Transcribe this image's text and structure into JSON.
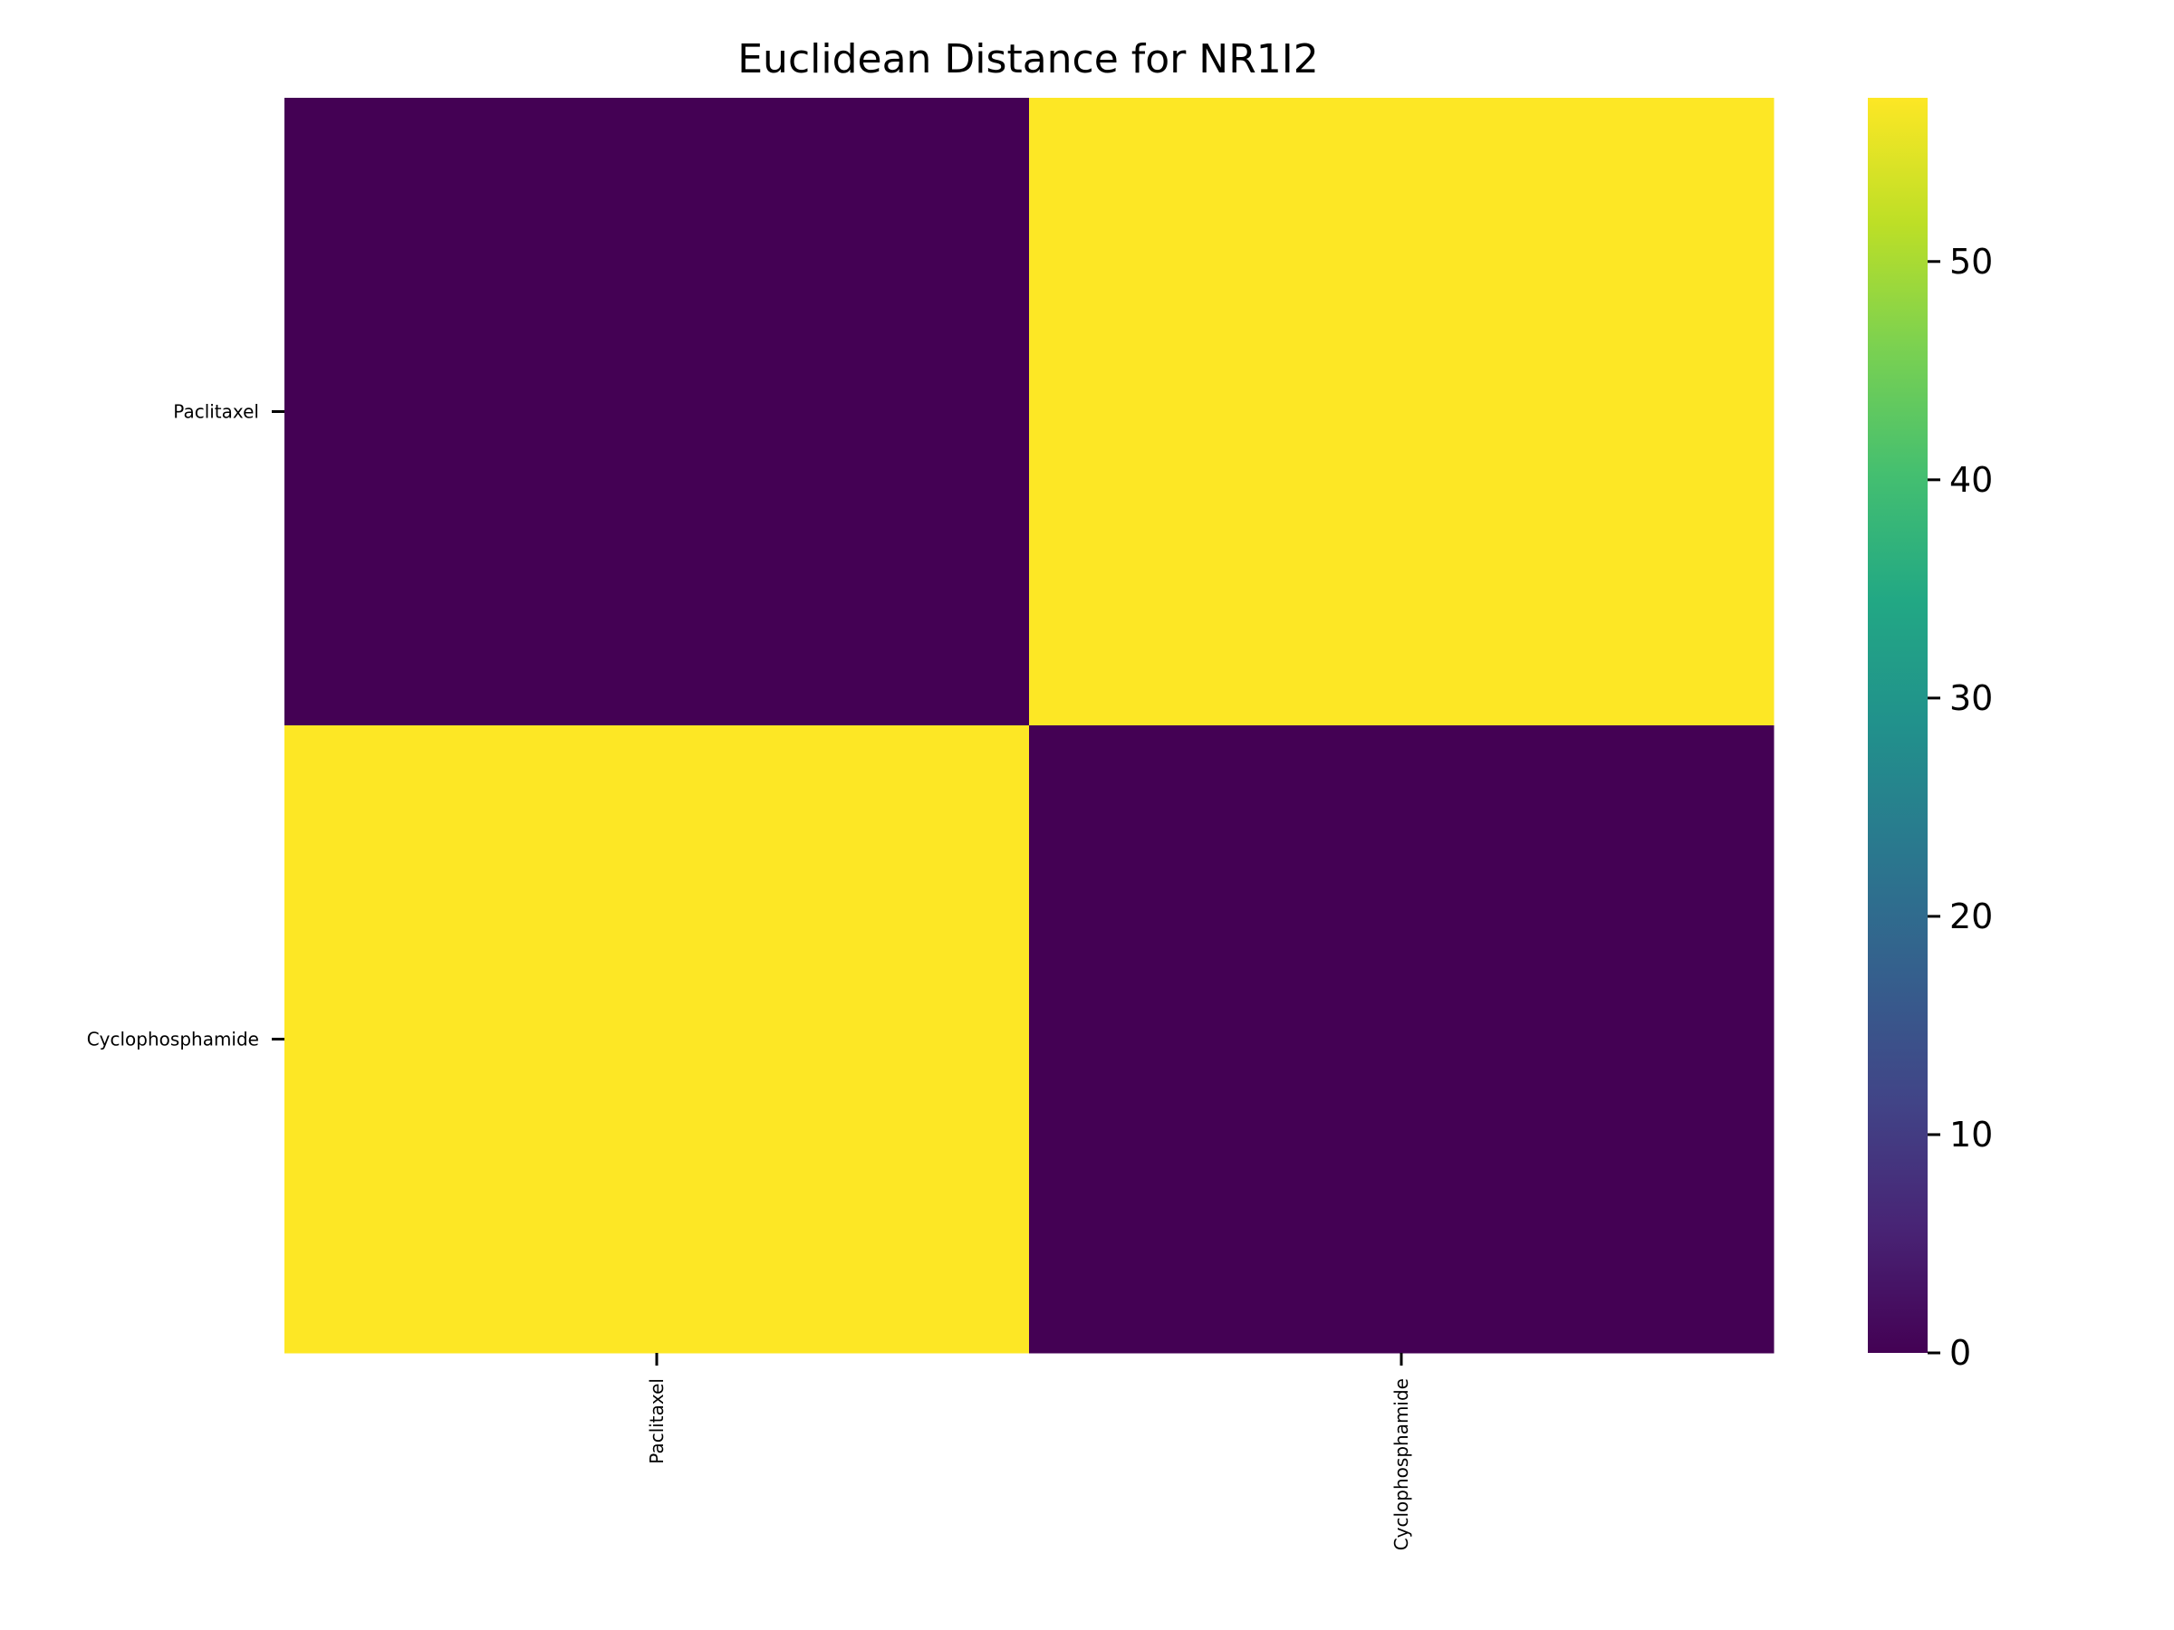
{
  "chart_data": {
    "type": "heatmap",
    "title": "Euclidean Distance for NR1I2",
    "xlabel": "",
    "ylabel": "",
    "x_categories": [
      "Paclitaxel",
      "Cyclophosphamide"
    ],
    "y_categories": [
      "Paclitaxel",
      "Cyclophosphamide"
    ],
    "values": [
      [
        0,
        57.5
      ],
      [
        57.5,
        0
      ]
    ],
    "colormap": "viridis",
    "colorbar": {
      "range": [
        0,
        57.5
      ],
      "ticks": [
        0,
        10,
        20,
        30,
        40,
        50
      ],
      "tick_labels": [
        "0",
        "10",
        "20",
        "30",
        "40",
        "50"
      ]
    },
    "colors": {
      "low": "#440154",
      "high": "#fde725"
    },
    "grid": false,
    "legend": "colorbar-right"
  }
}
